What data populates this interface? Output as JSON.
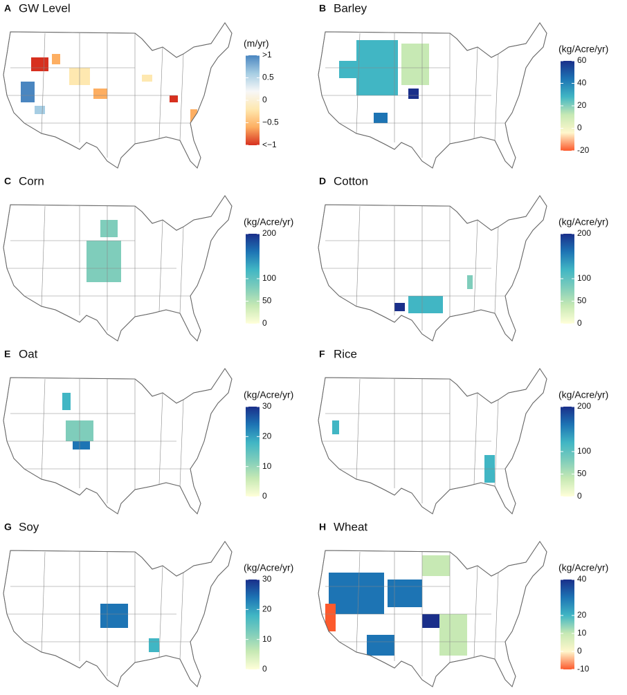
{
  "panels": [
    {
      "letter": "A",
      "title": "GW Level",
      "unit": "(m/yr)",
      "lim": [
        -1,
        1
      ],
      "ticks": [
        {
          "value": 1,
          "label": ">1"
        },
        0.5,
        0,
        {
          "value": -0.5,
          "label": "−0.5"
        },
        {
          "value": -1,
          "label": "<−1"
        }
      ],
      "colors": [
        "#d7301f",
        "#fdae61",
        "#fee8b0",
        "#f7f7f7",
        "#a6cde3",
        "#4a86c0"
      ]
    },
    {
      "letter": "B",
      "title": "Barley",
      "unit": "(kg/Acre/yr)",
      "lim": [
        -20,
        60
      ],
      "ticks": [
        60,
        40,
        20,
        0,
        -20
      ],
      "colors": [
        "#fc5a2d",
        "#fff7cc",
        "#c7e9b4",
        "#41b6c4",
        "#1d74b4",
        "#1a2f8a"
      ]
    },
    {
      "letter": "C",
      "title": "Corn",
      "unit": "(kg/Acre/yr)",
      "lim": [
        0,
        200
      ],
      "ticks": [
        200,
        100,
        50,
        0
      ],
      "colors": [
        "#ffffd9",
        "#c7e9b4",
        "#7fcdbb",
        "#41b6c4",
        "#1d74b4",
        "#1a2f8a"
      ]
    },
    {
      "letter": "D",
      "title": "Cotton",
      "unit": "(kg/Acre/yr)",
      "lim": [
        0,
        200
      ],
      "ticks": [
        200,
        100,
        50,
        0
      ],
      "colors": [
        "#ffffd9",
        "#c7e9b4",
        "#7fcdbb",
        "#41b6c4",
        "#1d74b4",
        "#1a2f8a"
      ]
    },
    {
      "letter": "E",
      "title": "Oat",
      "unit": "(kg/Acre/yr)",
      "lim": [
        0,
        30
      ],
      "ticks": [
        30,
        20,
        10,
        0
      ],
      "colors": [
        "#ffffd9",
        "#c7e9b4",
        "#7fcdbb",
        "#41b6c4",
        "#1d74b4",
        "#1a2f8a"
      ]
    },
    {
      "letter": "F",
      "title": "Rice",
      "unit": "(kg/Acre/yr)",
      "lim": [
        0,
        200
      ],
      "ticks": [
        200,
        100,
        50,
        0
      ],
      "colors": [
        "#ffffd9",
        "#c7e9b4",
        "#7fcdbb",
        "#41b6c4",
        "#1d74b4",
        "#1a2f8a"
      ]
    },
    {
      "letter": "G",
      "title": "Soy",
      "unit": "(kg/Acre/yr)",
      "lim": [
        0,
        30
      ],
      "ticks": [
        30,
        20,
        10,
        0
      ],
      "colors": [
        "#ffffd9",
        "#c7e9b4",
        "#7fcdbb",
        "#41b6c4",
        "#1d74b4",
        "#1a2f8a"
      ]
    },
    {
      "letter": "H",
      "title": "Wheat",
      "unit": "(kg/Acre/yr)",
      "lim": [
        -10,
        40
      ],
      "ticks": [
        40,
        20,
        10,
        0,
        -10
      ],
      "colors": [
        "#fc5a2d",
        "#fff7cc",
        "#c7e9b4",
        "#41b6c4",
        "#1d74b4",
        "#1a2f8a"
      ]
    }
  ]
}
